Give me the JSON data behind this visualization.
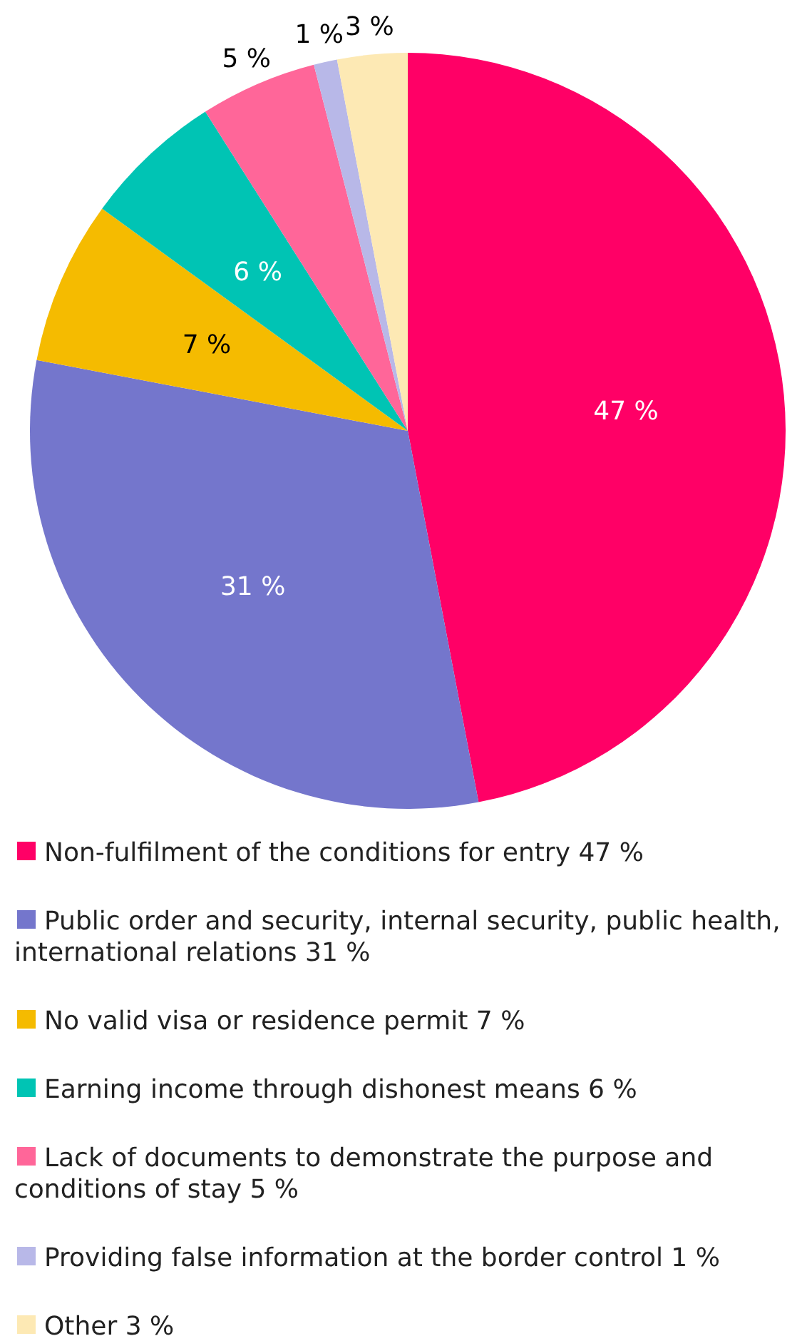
{
  "chart_data": {
    "type": "pie",
    "categories": [
      "Non-fulfilment of the conditions for entry",
      "Public order and security, internal security, public health, international relations",
      "No valid visa or residence permit",
      "Earning income through dishonest means",
      "Lack of documents to demonstrate the purpose and conditions of stay",
      "Providing false information at the border control",
      "Other"
    ],
    "values": [
      47,
      31,
      7,
      6,
      5,
      1,
      3
    ],
    "value_labels": [
      "47 %",
      "31 %",
      "7 %",
      "6 %",
      "5 %",
      "1 %",
      "3 %"
    ],
    "colors": [
      "#ff0066",
      "#7476cc",
      "#f5bb00",
      "#00c4b4",
      "#ff6699",
      "#b8b8e8",
      "#fde9b4"
    ],
    "legend": "bottom"
  }
}
